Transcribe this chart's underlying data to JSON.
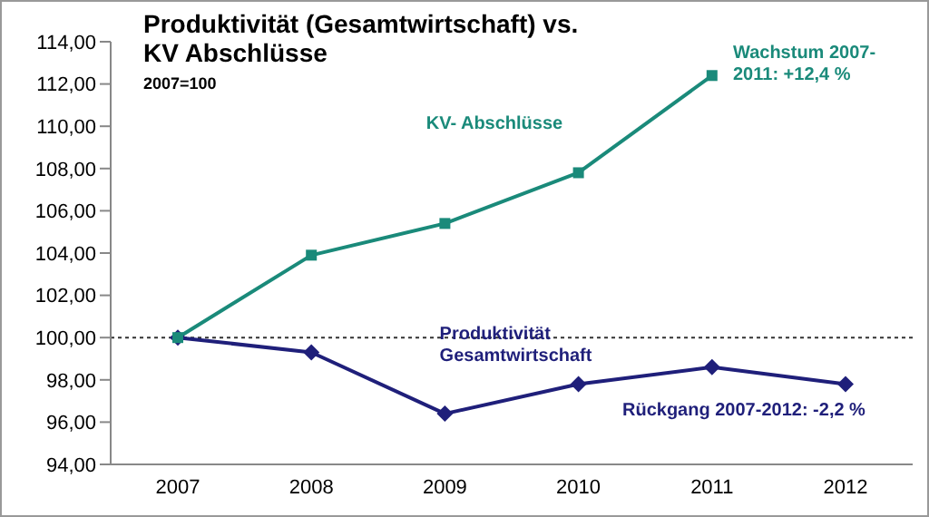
{
  "chart_data": {
    "type": "line",
    "title": "Produktivität (Gesamtwirtschaft) vs. KV Abschlüsse",
    "subtitle": "2007=100",
    "categories": [
      "2007",
      "2008",
      "2009",
      "2010",
      "2011",
      "2012"
    ],
    "series": [
      {
        "name": "KV- Abschlüsse",
        "color": "#1a8a7a",
        "marker": "square",
        "values": [
          100,
          103.9,
          105.4,
          107.8,
          112.4,
          null
        ]
      },
      {
        "name": "Produktivität Gesamtwirtschaft",
        "color": "#1f1f7a",
        "marker": "diamond",
        "values": [
          100,
          99.3,
          96.4,
          97.8,
          98.6,
          97.8
        ]
      }
    ],
    "ylim": [
      94,
      114
    ],
    "yticks": [
      {
        "value": 94,
        "label": "94,00"
      },
      {
        "value": 96,
        "label": "96,00"
      },
      {
        "value": 98,
        "label": "98,00"
      },
      {
        "value": 100,
        "label": "100,00"
      },
      {
        "value": 102,
        "label": "102,00"
      },
      {
        "value": 104,
        "label": "104,00"
      },
      {
        "value": 106,
        "label": "106,00"
      },
      {
        "value": 108,
        "label": "108,00"
      },
      {
        "value": 110,
        "label": "110,00"
      },
      {
        "value": 112,
        "label": "112,00"
      },
      {
        "value": 114,
        "label": "114,00"
      }
    ],
    "ref_lines": [
      {
        "axis": "y",
        "value": 100,
        "color": "#333333",
        "line_style": "dotted"
      }
    ],
    "annotations": [
      {
        "text": "Wachstum 2007-2011: +12,4 %",
        "x": "2011",
        "y": 112.4
      },
      {
        "text": "Rückgang 2007-2012: -2,2 %",
        "x": "2012",
        "y": 97.8
      }
    ],
    "grid": false
  }
}
